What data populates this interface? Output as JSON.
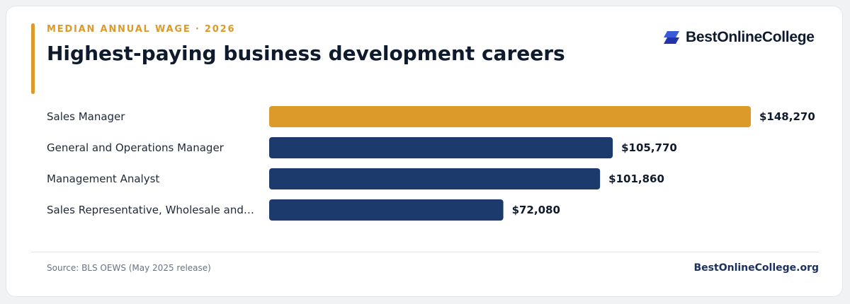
{
  "header": {
    "eyebrow": "MEDIAN ANNUAL WAGE · 2026",
    "title": "Highest-paying business development careers"
  },
  "brand": {
    "name": "BestOnlineCollege",
    "logo_icon": "parallelogram-logo-icon"
  },
  "colors": {
    "accent": "#db9a29",
    "bar_primary": "#1c3a6c",
    "bar_highlight": "#db9a29",
    "title": "#0f1b2d"
  },
  "chart_data": {
    "type": "bar",
    "orientation": "horizontal",
    "categories": [
      "Sales Manager",
      "General and Operations Manager",
      "Management Analyst",
      "Sales Representative, Wholesale and…"
    ],
    "values": [
      148270,
      105770,
      101860,
      72080
    ],
    "value_labels": [
      "$148,270",
      "$105,770",
      "$101,860",
      "$72,080"
    ],
    "highlight_index": 0,
    "xlim": [
      0,
      148270
    ],
    "grid": false,
    "legend": "none"
  },
  "footer": {
    "source": "Source: BLS OEWS (May 2025 release)",
    "site": "BestOnlineCollege.org"
  }
}
